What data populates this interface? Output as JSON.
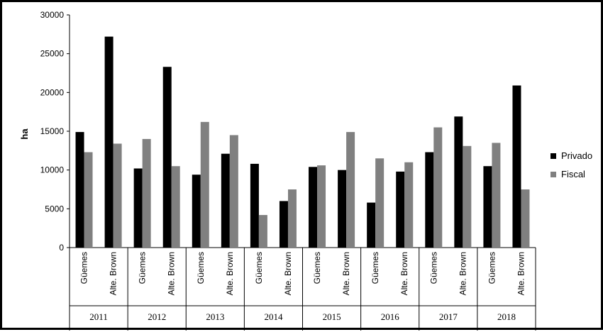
{
  "chart_data": {
    "type": "bar",
    "ylabel": "ha",
    "xlabel": "",
    "ylim": [
      0,
      30000
    ],
    "yticks": [
      "0",
      "5000",
      "10000",
      "15000",
      "20000",
      "25000",
      "30000"
    ],
    "groups": [
      {
        "year": "2011",
        "categories": [
          "Güemes",
          "Alte. Brown"
        ]
      },
      {
        "year": "2012",
        "categories": [
          "Güemes",
          "Alte. Brown"
        ]
      },
      {
        "year": "2013",
        "categories": [
          "Güemes",
          "Alte. Brown"
        ]
      },
      {
        "year": "2014",
        "categories": [
          "Güemes",
          "Alte. Brown"
        ]
      },
      {
        "year": "2015",
        "categories": [
          "Güemes",
          "Alte. Brown"
        ]
      },
      {
        "year": "2016",
        "categories": [
          "Güemes",
          "Alte. Brown"
        ]
      },
      {
        "year": "2017",
        "categories": [
          "Güemes",
          "Alte. Brown"
        ]
      },
      {
        "year": "2018",
        "categories": [
          "Güemes",
          "Alte. Brown"
        ]
      }
    ],
    "series": [
      {
        "name": "Privado",
        "color": "#000000",
        "values": [
          14900,
          27200,
          10200,
          23300,
          9400,
          12100,
          10800,
          6000,
          10400,
          10000,
          5800,
          9800,
          12300,
          16900,
          10500,
          20900
        ]
      },
      {
        "name": "Fiscal",
        "color": "#808080",
        "values": [
          12300,
          13400,
          14000,
          10500,
          16200,
          14500,
          4200,
          7500,
          10600,
          14900,
          11500,
          11000,
          15500,
          13100,
          13500,
          7500
        ]
      }
    ],
    "legend_position": "right",
    "grid": false
  }
}
